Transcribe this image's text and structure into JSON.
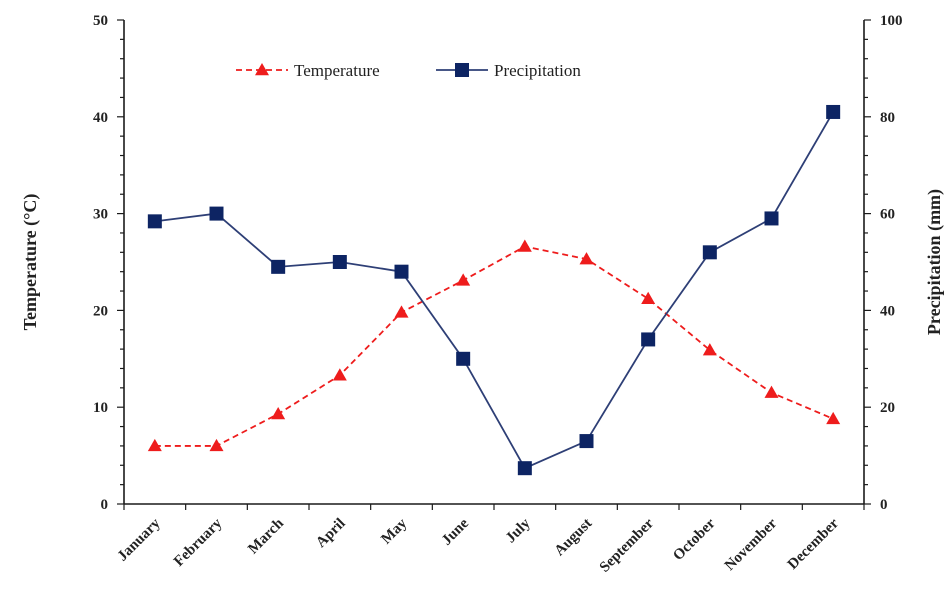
{
  "chart_data": {
    "type": "line",
    "categories": [
      "January",
      "February",
      "March",
      "April",
      "May",
      "June",
      "July",
      "August",
      "September",
      "October",
      "November",
      "December"
    ],
    "series": [
      {
        "name": "Temperature",
        "axis": "left",
        "color": "#ee1c1c",
        "line_style": "dashed",
        "marker": "triangle",
        "values": [
          6.0,
          6.0,
          9.3,
          13.3,
          19.8,
          23.1,
          26.6,
          25.3,
          21.2,
          15.9,
          11.5,
          8.8
        ]
      },
      {
        "name": "Precipitation",
        "axis": "right",
        "color": "#2e3f76",
        "marker_color": "#0d2463",
        "line_style": "solid",
        "marker": "square",
        "values": [
          58.4,
          60.0,
          49.0,
          50.0,
          48.0,
          30.0,
          7.4,
          13.0,
          34.0,
          52.0,
          59.0,
          81.0
        ]
      }
    ],
    "ylabel": "Temperature (°C)",
    "y2label": "Precipitation (mm)",
    "ylim": [
      0,
      50
    ],
    "y2lim": [
      0,
      100
    ],
    "yticks": [
      "0",
      "10",
      "20",
      "30",
      "40",
      "50"
    ],
    "y2ticks": [
      "0",
      "20",
      "40",
      "60",
      "80",
      "100"
    ],
    "grid": false,
    "legend_position": "top-center"
  }
}
